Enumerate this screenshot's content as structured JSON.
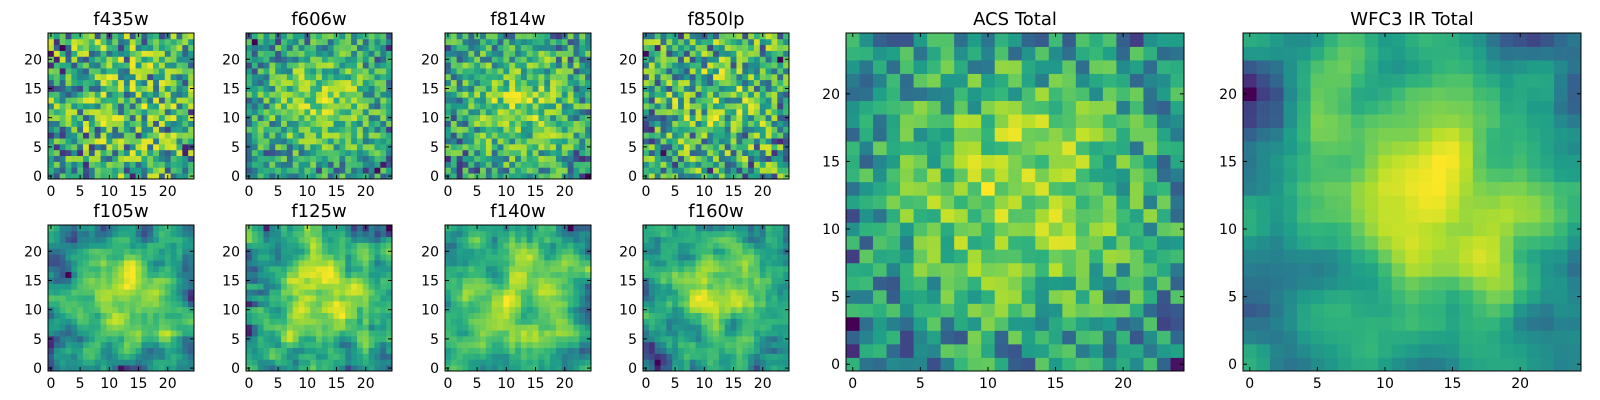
{
  "chart_data": [
    {
      "type": "heatmap",
      "title": "f435w",
      "xticks": [
        0,
        5,
        10,
        15,
        20
      ],
      "yticks": [
        0,
        5,
        10,
        15,
        20
      ],
      "xlim": [
        -0.5,
        24.5
      ],
      "ylim": [
        -0.5,
        24.5
      ],
      "grid_size": 25,
      "smoothness": 0,
      "noise": 0.75,
      "blob": 0.1,
      "colormap": "viridis"
    },
    {
      "type": "heatmap",
      "title": "f606w",
      "xticks": [
        0,
        5,
        10,
        15,
        20
      ],
      "yticks": [
        0,
        5,
        10,
        15,
        20
      ],
      "xlim": [
        -0.5,
        24.5
      ],
      "ylim": [
        -0.5,
        24.5
      ],
      "grid_size": 25,
      "smoothness": 0,
      "noise": 0.5,
      "blob": 0.35,
      "colormap": "viridis"
    },
    {
      "type": "heatmap",
      "title": "f814w",
      "xticks": [
        0,
        5,
        10,
        15,
        20
      ],
      "yticks": [
        0,
        5,
        10,
        15,
        20
      ],
      "xlim": [
        -0.5,
        24.5
      ],
      "ylim": [
        -0.5,
        24.5
      ],
      "grid_size": 25,
      "smoothness": 0,
      "noise": 0.55,
      "blob": 0.35,
      "colormap": "viridis"
    },
    {
      "type": "heatmap",
      "title": "f850lp",
      "xticks": [
        0,
        5,
        10,
        15,
        20
      ],
      "yticks": [
        0,
        5,
        10,
        15,
        20
      ],
      "xlim": [
        -0.5,
        24.5
      ],
      "ylim": [
        -0.5,
        24.5
      ],
      "grid_size": 25,
      "smoothness": 0,
      "noise": 0.7,
      "blob": 0.15,
      "colormap": "viridis"
    },
    {
      "type": "heatmap",
      "title": "f105w",
      "xticks": [
        0,
        5,
        10,
        15,
        20
      ],
      "yticks": [
        0,
        5,
        10,
        15,
        20
      ],
      "xlim": [
        -0.5,
        24.5
      ],
      "ylim": [
        -0.5,
        24.5
      ],
      "grid_size": 25,
      "smoothness": 1,
      "noise": 0.45,
      "blob": 0.4,
      "colormap": "viridis"
    },
    {
      "type": "heatmap",
      "title": "f125w",
      "xticks": [
        0,
        5,
        10,
        15,
        20
      ],
      "yticks": [
        0,
        5,
        10,
        15,
        20
      ],
      "xlim": [
        -0.5,
        24.5
      ],
      "ylim": [
        -0.5,
        24.5
      ],
      "grid_size": 25,
      "smoothness": 1,
      "noise": 0.5,
      "blob": 0.35,
      "colormap": "viridis"
    },
    {
      "type": "heatmap",
      "title": "f140w",
      "xticks": [
        0,
        5,
        10,
        15,
        20
      ],
      "yticks": [
        0,
        5,
        10,
        15,
        20
      ],
      "xlim": [
        -0.5,
        24.5
      ],
      "ylim": [
        -0.5,
        24.5
      ],
      "grid_size": 25,
      "smoothness": 1,
      "noise": 0.45,
      "blob": 0.35,
      "colormap": "viridis"
    },
    {
      "type": "heatmap",
      "title": "f160w",
      "xticks": [
        0,
        5,
        10,
        15,
        20
      ],
      "yticks": [
        0,
        5,
        10,
        15,
        20
      ],
      "xlim": [
        -0.5,
        24.5
      ],
      "ylim": [
        -0.5,
        24.5
      ],
      "grid_size": 25,
      "smoothness": 1,
      "noise": 0.45,
      "blob": 0.35,
      "colormap": "viridis"
    },
    {
      "type": "heatmap",
      "title": "ACS Total",
      "xticks": [
        0,
        5,
        10,
        15,
        20
      ],
      "yticks": [
        0,
        5,
        10,
        15,
        20
      ],
      "xlim": [
        -0.5,
        24.5
      ],
      "ylim": [
        -0.5,
        24.5
      ],
      "grid_size": 25,
      "smoothness": 0,
      "noise": 0.4,
      "blob": 0.45,
      "colormap": "viridis"
    },
    {
      "type": "heatmap",
      "title": "WFC3 IR Total",
      "xticks": [
        0,
        5,
        10,
        15,
        20
      ],
      "yticks": [
        0,
        5,
        10,
        15,
        20
      ],
      "xlim": [
        -0.5,
        24.5
      ],
      "ylim": [
        -0.5,
        24.5
      ],
      "grid_size": 25,
      "smoothness": 2,
      "noise": 0.35,
      "blob": 0.55,
      "colormap": "viridis"
    }
  ]
}
